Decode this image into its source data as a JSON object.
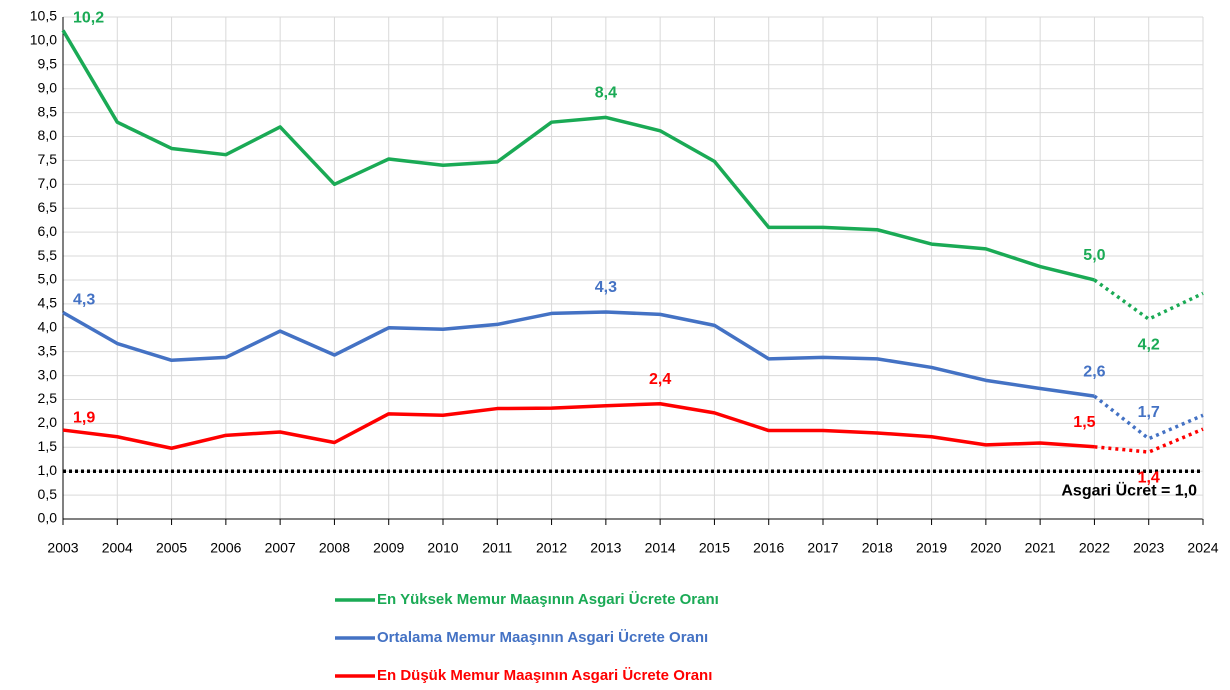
{
  "chart_data": {
    "type": "line",
    "categories": [
      "2003",
      "2004",
      "2005",
      "2006",
      "2007",
      "2008",
      "2009",
      "2010",
      "2011",
      "2012",
      "2013",
      "2014",
      "2015",
      "2016",
      "2017",
      "2018",
      "2019",
      "2020",
      "2021",
      "2022",
      "2023",
      "2024"
    ],
    "series": [
      {
        "name": "En Yüksek Memur Maaşının Asgari Ücrete Oranı",
        "color": "#1aaa55",
        "values": [
          10.22,
          8.3,
          7.75,
          7.62,
          8.2,
          7.0,
          7.53,
          7.4,
          7.47,
          8.3,
          8.4,
          8.12,
          7.48,
          6.1,
          6.1,
          6.05,
          5.75,
          5.65,
          5.28,
          5.0,
          4.18,
          4.72
        ],
        "value_labels": [
          "10,2",
          null,
          null,
          null,
          null,
          null,
          null,
          null,
          null,
          null,
          "8,4",
          null,
          null,
          null,
          null,
          null,
          null,
          null,
          null,
          "5,0",
          "4,2",
          null
        ]
      },
      {
        "name": "Ortalama Memur Maaşının Asgari Ücrete Oranı",
        "color": "#4472c4",
        "values": [
          4.32,
          3.67,
          3.32,
          3.38,
          3.93,
          3.43,
          4.0,
          3.97,
          4.07,
          4.3,
          4.33,
          4.28,
          4.05,
          3.35,
          3.38,
          3.35,
          3.17,
          2.9,
          2.73,
          2.57,
          1.68,
          2.17
        ],
        "value_labels": [
          "4,3",
          null,
          null,
          null,
          null,
          null,
          null,
          null,
          null,
          null,
          "4,3",
          null,
          null,
          null,
          null,
          null,
          null,
          null,
          null,
          "2,6",
          "1,7",
          null
        ]
      },
      {
        "name": "En Düşük Memur Maaşının Asgari Ücrete Oranı",
        "color": "#ff0000",
        "values": [
          1.86,
          1.72,
          1.48,
          1.75,
          1.82,
          1.6,
          2.2,
          2.17,
          2.31,
          2.32,
          2.37,
          2.41,
          2.22,
          1.85,
          1.85,
          1.8,
          1.72,
          1.55,
          1.59,
          1.51,
          1.4,
          1.88
        ],
        "value_labels": [
          "1,9",
          null,
          null,
          null,
          null,
          null,
          null,
          null,
          null,
          null,
          null,
          "2,4",
          null,
          null,
          null,
          null,
          null,
          null,
          null,
          "1,5",
          "1,4",
          null
        ]
      }
    ],
    "dotted_after": "2022",
    "reference_line": {
      "value": 1,
      "label": "Asgari Ücret = 1,0"
    },
    "ylim": [
      0,
      10.5
    ],
    "yticks": [
      {
        "value": 0,
        "label": "0,0"
      },
      {
        "value": 0.5,
        "label": "0,5"
      },
      {
        "value": 1,
        "label": "1,0"
      },
      {
        "value": 1.5,
        "label": "1,5"
      },
      {
        "value": 2,
        "label": "2,0"
      },
      {
        "value": 2.5,
        "label": "2,5"
      },
      {
        "value": 3,
        "label": "3,0"
      },
      {
        "value": 3.5,
        "label": "3,5"
      },
      {
        "value": 4,
        "label": "4,0"
      },
      {
        "value": 4.5,
        "label": "4,5"
      },
      {
        "value": 5,
        "label": "5,0"
      },
      {
        "value": 5.5,
        "label": "5,5"
      },
      {
        "value": 6,
        "label": "6,0"
      },
      {
        "value": 6.5,
        "label": "6,5"
      },
      {
        "value": 7,
        "label": "7,0"
      },
      {
        "value": 7.5,
        "label": "7,5"
      },
      {
        "value": 8,
        "label": "8,0"
      },
      {
        "value": 8.5,
        "label": "8,5"
      },
      {
        "value": 9,
        "label": "9,0"
      },
      {
        "value": 9.5,
        "label": "9,5"
      },
      {
        "value": 10,
        "label": "10,0"
      },
      {
        "value": 10.5,
        "label": "10,5"
      }
    ],
    "grid": true
  }
}
